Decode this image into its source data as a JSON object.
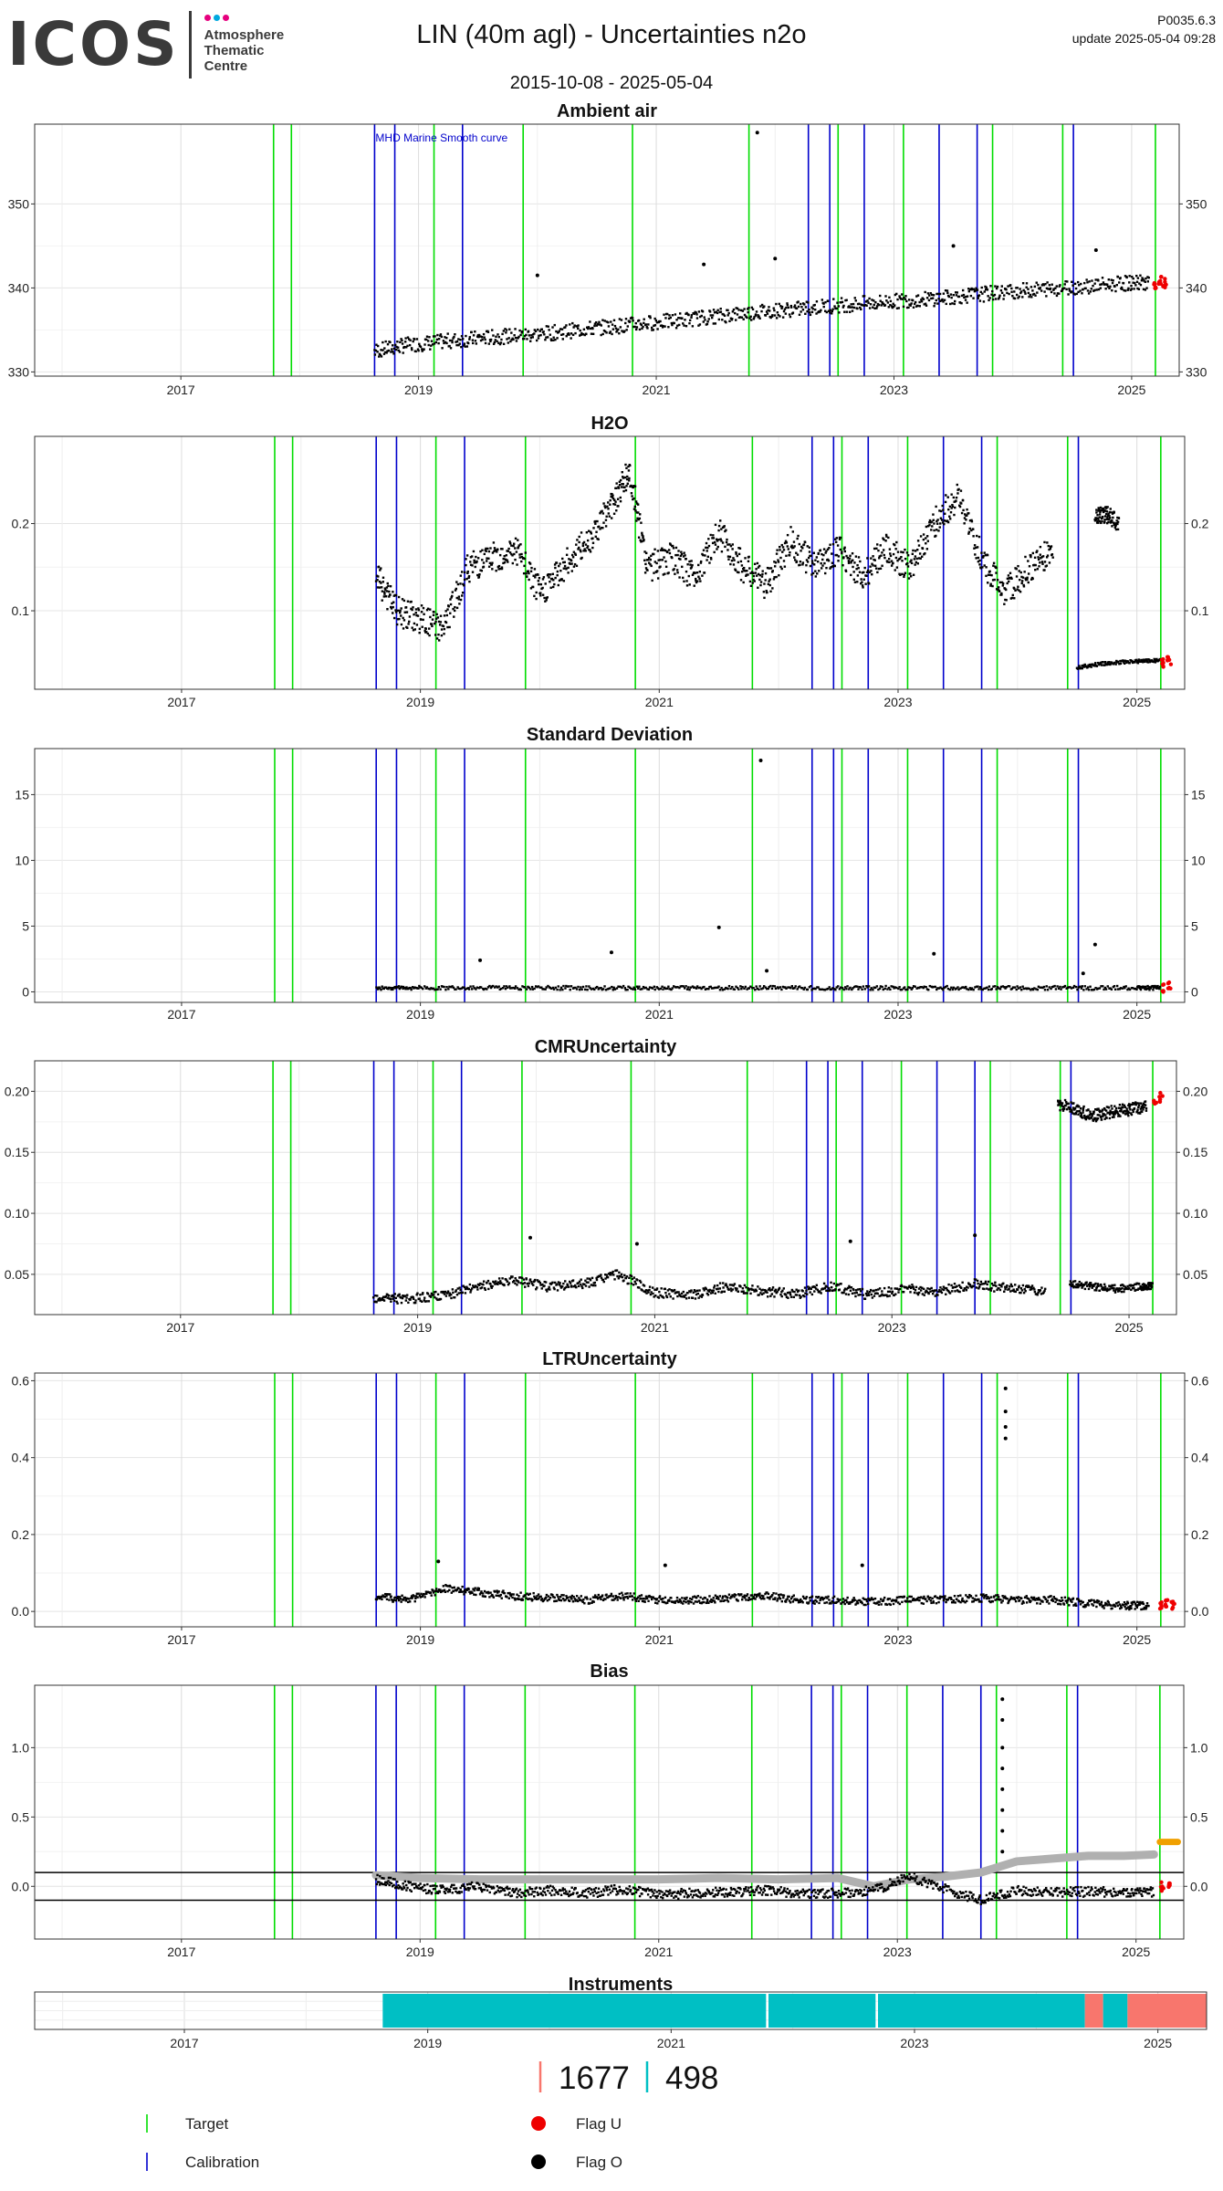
{
  "header": {
    "logo_text": "ICOS",
    "logo_sub": [
      "Atmosphere",
      "Thematic",
      "Centre"
    ],
    "logo_colors": [
      "#e6007e",
      "#00a9e0",
      "#e6007e"
    ],
    "title": "LIN  (40m agl) - Uncertainties n2o",
    "date_range": "2015-10-08 - 2025-05-04",
    "code": "P0035.6.3",
    "update": "update  2025-05-04 09:28"
  },
  "colors": {
    "target": "#00dd00",
    "calibration": "#0000cc",
    "flag_u": "#ee0000",
    "flag_o": "#000000",
    "grey_band": "#b0b0b0",
    "orange": "#f0a000",
    "inst_teal": "#00bfc4",
    "inst_salmon": "#f8766d"
  },
  "target_lines": [
    2017.78,
    2017.93,
    2019.13,
    2019.88,
    2020.8,
    2021.78,
    2022.53,
    2023.08,
    2023.83,
    2024.42,
    2025.2
  ],
  "calibration_lines": [
    2018.63,
    2018.8,
    2019.37,
    2022.28,
    2022.46,
    2022.75,
    2023.38,
    2023.7,
    2024.51
  ],
  "chart_data": [
    {
      "type": "scatter",
      "id": "ambient",
      "title": "Ambient air",
      "xlim": [
        2015.77,
        2025.4
      ],
      "ylim": [
        329.5,
        359.5
      ],
      "yticks": [
        330,
        340,
        350
      ],
      "ytick_labels": [
        "330",
        "340",
        "350"
      ],
      "xticks": [
        2017,
        2019,
        2021,
        2023,
        2025
      ],
      "xtick_labels": [
        "2017",
        "2019",
        "2021",
        "2023",
        "2025"
      ],
      "annotation": "MHD Marine Smooth curve",
      "series": [
        {
          "x": [
            2018.63,
            2018.9,
            2019.2,
            2019.5,
            2019.8,
            2020.1,
            2020.4,
            2020.7,
            2021.0,
            2021.3,
            2021.6,
            2021.9,
            2022.2,
            2022.5,
            2022.8,
            2023.1,
            2023.4,
            2023.7,
            2024.0,
            2024.3,
            2024.6,
            2024.9,
            2025.15
          ],
          "y": [
            332.5,
            333.2,
            333.6,
            334.0,
            334.3,
            334.6,
            335.1,
            335.5,
            335.9,
            336.3,
            336.8,
            337.2,
            337.5,
            337.9,
            338.2,
            338.5,
            338.8,
            339.2,
            339.6,
            339.9,
            340.2,
            340.5,
            340.7
          ],
          "spread": 1.8
        }
      ],
      "flag_u": {
        "x": [
          2025.2,
          2025.24,
          2025.28
        ],
        "y": [
          340.4,
          341.0,
          340.6
        ]
      },
      "outliers": {
        "x": [
          2020.0,
          2021.4,
          2022.0,
          2023.5,
          2024.7,
          2021.85
        ],
        "y": [
          341.5,
          342.8,
          343.5,
          345.0,
          344.5,
          358.5
        ]
      }
    },
    {
      "type": "scatter",
      "id": "h2o",
      "title": "H2O",
      "xlim": [
        2015.77,
        2025.4
      ],
      "ylim": [
        0.01,
        0.3
      ],
      "yticks": [
        0.1,
        0.2
      ],
      "ytick_labels": [
        "0.1",
        "0.2"
      ],
      "xticks": [
        2017,
        2019,
        2021,
        2023,
        2025
      ],
      "xtick_labels": [
        "2017",
        "2019",
        "2021",
        "2023",
        "2025"
      ],
      "series": [
        {
          "x": [
            2018.63,
            2018.8,
            2019.0,
            2019.2,
            2019.4,
            2019.6,
            2019.8,
            2020.0,
            2020.2,
            2020.4,
            2020.6,
            2020.75,
            2020.9,
            2021.1,
            2021.3,
            2021.5,
            2021.7,
            2021.9,
            2022.1,
            2022.3,
            2022.5,
            2022.7,
            2022.9,
            2023.1,
            2023.3,
            2023.5,
            2023.7,
            2023.9,
            2024.1,
            2024.3
          ],
          "y": [
            0.14,
            0.1,
            0.09,
            0.08,
            0.15,
            0.16,
            0.17,
            0.12,
            0.15,
            0.18,
            0.22,
            0.26,
            0.15,
            0.16,
            0.14,
            0.19,
            0.15,
            0.13,
            0.18,
            0.15,
            0.17,
            0.14,
            0.17,
            0.15,
            0.2,
            0.23,
            0.16,
            0.12,
            0.15,
            0.17
          ],
          "spread": 0.035
        },
        {
          "x": [
            2024.5,
            2024.75,
            2025.0,
            2025.2
          ],
          "y": [
            0.035,
            0.04,
            0.042,
            0.043
          ],
          "spread": 0.004
        },
        {
          "x": [
            2024.65,
            2024.75,
            2024.85
          ],
          "y": [
            0.21,
            0.21,
            0.2
          ],
          "spread": 0.02
        }
      ],
      "flag_u": {
        "x": [
          2025.22,
          2025.27
        ],
        "y": [
          0.04,
          0.043
        ]
      },
      "outliers": {
        "x": [],
        "y": []
      }
    },
    {
      "type": "scatter",
      "id": "stddev",
      "title": "Standard Deviation",
      "xlim": [
        2015.77,
        2025.4
      ],
      "ylim": [
        -0.8,
        18.5
      ],
      "yticks": [
        0,
        5,
        10,
        15
      ],
      "ytick_labels": [
        "0",
        "5",
        "10",
        "15"
      ],
      "xticks": [
        2017,
        2019,
        2021,
        2023,
        2025
      ],
      "xtick_labels": [
        "2017",
        "2019",
        "2021",
        "2023",
        "2025"
      ],
      "series": [
        {
          "x": [
            2018.63,
            2019.0,
            2019.5,
            2020.0,
            2020.5,
            2021.0,
            2021.5,
            2022.0,
            2022.5,
            2023.0,
            2023.5,
            2024.0,
            2024.5,
            2025.0,
            2025.2
          ],
          "y": [
            0.3,
            0.3,
            0.3,
            0.3,
            0.3,
            0.3,
            0.3,
            0.3,
            0.3,
            0.3,
            0.3,
            0.3,
            0.3,
            0.3,
            0.3
          ],
          "spread": 0.3
        }
      ],
      "flag_u": {
        "x": [
          2025.22,
          2025.27
        ],
        "y": [
          0.3,
          0.5
        ]
      },
      "outliers": {
        "x": [
          2019.5,
          2020.6,
          2021.5,
          2021.85,
          2021.9,
          2023.3,
          2024.65,
          2024.55
        ],
        "y": [
          2.4,
          3.0,
          4.9,
          17.6,
          1.6,
          2.9,
          3.6,
          1.4
        ]
      }
    },
    {
      "type": "scatter",
      "id": "cmr",
      "title": "CMRUncertainty",
      "xlim": [
        2015.77,
        2025.4
      ],
      "ylim": [
        0.017,
        0.225
      ],
      "yticks": [
        0.05,
        0.1,
        0.15,
        0.2
      ],
      "ytick_labels": [
        "0.05",
        "0.10",
        "0.15",
        "0.20"
      ],
      "xticks": [
        2017,
        2019,
        2021,
        2023,
        2025
      ],
      "xtick_labels": [
        "2017",
        "2019",
        "2021",
        "2023",
        "2025"
      ],
      "series": [
        {
          "x": [
            2018.63,
            2018.9,
            2019.2,
            2019.5,
            2019.8,
            2020.1,
            2020.4,
            2020.7,
            2021.0,
            2021.3,
            2021.6,
            2021.9,
            2022.2,
            2022.5,
            2022.8,
            2023.1,
            2023.4,
            2023.7,
            2024.0,
            2024.3
          ],
          "y": [
            0.03,
            0.03,
            0.032,
            0.04,
            0.045,
            0.04,
            0.042,
            0.05,
            0.035,
            0.033,
            0.04,
            0.036,
            0.034,
            0.04,
            0.033,
            0.038,
            0.036,
            0.042,
            0.038,
            0.036
          ],
          "spread": 0.008
        },
        {
          "x": [
            2024.5,
            2024.7,
            2024.9,
            2025.1,
            2025.2
          ],
          "y": [
            0.042,
            0.04,
            0.038,
            0.04,
            0.04
          ],
          "spread": 0.006
        },
        {
          "x": [
            2024.4,
            2024.55,
            2024.7,
            2024.85,
            2025.0,
            2025.15
          ],
          "y": [
            0.19,
            0.185,
            0.18,
            0.183,
            0.185,
            0.188
          ],
          "spread": 0.01
        }
      ],
      "flag_u": {
        "x": [
          2025.22,
          2025.27
        ],
        "y": [
          0.19,
          0.195
        ]
      },
      "outliers": {
        "x": [
          2019.95,
          2020.85,
          2022.65,
          2023.7
        ],
        "y": [
          0.08,
          0.075,
          0.077,
          0.082
        ]
      }
    },
    {
      "type": "scatter",
      "id": "ltr",
      "title": "LTRUncertainty",
      "xlim": [
        2015.77,
        2025.4
      ],
      "ylim": [
        -0.04,
        0.62
      ],
      "yticks": [
        0,
        0.2,
        0.4,
        0.6
      ],
      "ytick_labels": [
        "0.0",
        "0.2",
        "0.4",
        "0.6"
      ],
      "xticks": [
        2017,
        2019,
        2021,
        2023,
        2025
      ],
      "xtick_labels": [
        "2017",
        "2019",
        "2021",
        "2023",
        "2025"
      ],
      "series": [
        {
          "x": [
            2018.63,
            2018.9,
            2019.2,
            2019.5,
            2019.8,
            2020.1,
            2020.4,
            2020.7,
            2021.0,
            2021.3,
            2021.6,
            2021.9,
            2022.2,
            2022.5,
            2022.8,
            2023.1,
            2023.4,
            2023.7,
            2024.0,
            2024.3,
            2024.6,
            2024.9,
            2025.1
          ],
          "y": [
            0.04,
            0.03,
            0.06,
            0.05,
            0.04,
            0.035,
            0.03,
            0.04,
            0.03,
            0.03,
            0.035,
            0.04,
            0.03,
            0.03,
            0.025,
            0.03,
            0.03,
            0.035,
            0.03,
            0.03,
            0.02,
            0.015,
            0.015
          ],
          "spread": 0.02
        }
      ],
      "flag_u": {
        "x": [
          2025.2,
          2025.25,
          2025.3
        ],
        "y": [
          0.015,
          0.02,
          0.015
        ]
      },
      "outliers": {
        "x": [
          2019.15,
          2021.05,
          2022.7,
          2023.9,
          2023.9,
          2023.9,
          2023.9
        ],
        "y": [
          0.13,
          0.12,
          0.12,
          0.58,
          0.52,
          0.48,
          0.45
        ]
      }
    },
    {
      "type": "scatter",
      "id": "bias",
      "title": "Bias",
      "xlim": [
        2015.77,
        2025.4
      ],
      "ylim": [
        -0.38,
        1.45
      ],
      "yticks": [
        0,
        0.5,
        1.0
      ],
      "ytick_labels": [
        "0.0",
        "0.5",
        "1.0"
      ],
      "xticks": [
        2017,
        2019,
        2021,
        2023,
        2025
      ],
      "xtick_labels": [
        "2017",
        "2019",
        "2021",
        "2023",
        "2025"
      ],
      "hlines": [
        0.1,
        -0.1
      ],
      "grey_series": {
        "x": [
          2018.63,
          2019.0,
          2019.5,
          2020.0,
          2020.5,
          2021.0,
          2021.5,
          2022.0,
          2022.5,
          2022.8,
          2023.1,
          2023.4,
          2023.7,
          2024.0,
          2024.3,
          2024.6,
          2024.9,
          2025.15
        ],
        "y": [
          0.08,
          0.06,
          0.05,
          0.05,
          0.05,
          0.05,
          0.06,
          0.05,
          0.06,
          0.0,
          0.05,
          0.07,
          0.1,
          0.18,
          0.2,
          0.22,
          0.22,
          0.23
        ]
      },
      "orange_series": {
        "x": [
          2025.2,
          2025.35
        ],
        "y": [
          0.32,
          0.32
        ]
      },
      "series": [
        {
          "x": [
            2018.63,
            2018.9,
            2019.2,
            2019.5,
            2019.8,
            2020.1,
            2020.4,
            2020.7,
            2021.0,
            2021.3,
            2021.6,
            2021.9,
            2022.2,
            2022.5,
            2022.8,
            2023.1,
            2023.4,
            2023.7,
            2024.0,
            2024.3,
            2024.6,
            2024.9,
            2025.15
          ],
          "y": [
            0.05,
            0.0,
            -0.03,
            0.0,
            -0.05,
            -0.03,
            -0.05,
            -0.02,
            -0.06,
            -0.05,
            -0.04,
            -0.03,
            -0.05,
            -0.05,
            -0.03,
            0.07,
            -0.02,
            -0.1,
            -0.03,
            -0.04,
            -0.04,
            -0.04,
            -0.04
          ],
          "spread": 0.07
        }
      ],
      "flag_u": {
        "x": [
          2025.22,
          2025.27
        ],
        "y": [
          0.0,
          0.02
        ]
      },
      "outliers": {
        "x": [
          2023.88,
          2023.88,
          2023.88,
          2023.88,
          2023.88,
          2023.88,
          2023.88,
          2023.88
        ],
        "y": [
          1.35,
          1.2,
          1.0,
          0.85,
          0.7,
          0.55,
          0.4,
          0.25
        ]
      }
    },
    {
      "type": "bar",
      "id": "instruments",
      "title": "Instruments",
      "xlim": [
        2015.77,
        2025.4
      ],
      "xticks": [
        2017,
        2019,
        2021,
        2023,
        2025
      ],
      "xtick_labels": [
        "2017",
        "2019",
        "2021",
        "2023",
        "2025"
      ],
      "segments": [
        {
          "start": 2018.63,
          "end": 2021.78,
          "color": "#00bfc4"
        },
        {
          "start": 2021.8,
          "end": 2022.68,
          "color": "#00bfc4"
        },
        {
          "start": 2022.7,
          "end": 2024.4,
          "color": "#00bfc4"
        },
        {
          "start": 2024.4,
          "end": 2024.55,
          "color": "#f8766d"
        },
        {
          "start": 2024.55,
          "end": 2024.75,
          "color": "#00bfc4"
        },
        {
          "start": 2024.75,
          "end": 2025.4,
          "color": "#f8766d"
        }
      ]
    }
  ],
  "instrument_legend": [
    {
      "label": "1677",
      "color": "#f8766d"
    },
    {
      "label": "498",
      "color": "#00bfc4"
    }
  ],
  "legend": {
    "target": "Target",
    "calibration": "Calibration",
    "flag_u": "Flag U",
    "flag_o": "Flag O"
  }
}
